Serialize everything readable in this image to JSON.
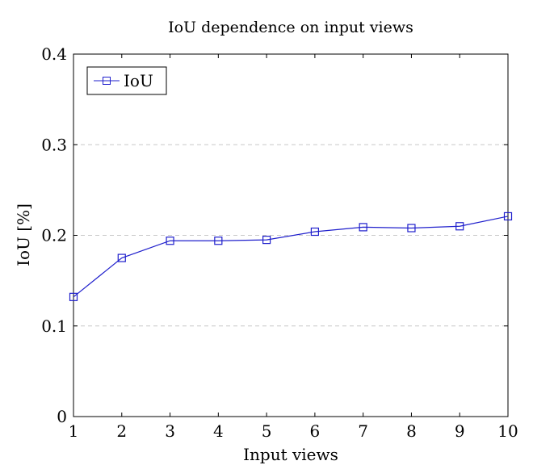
{
  "chart_data": {
    "type": "line",
    "title": "IoU dependence on input views",
    "xlabel": "Input views",
    "ylabel": "IoU [%]",
    "xlim": [
      1,
      10
    ],
    "ylim": [
      0,
      0.4
    ],
    "x_ticks": [
      "1",
      "2",
      "3",
      "4",
      "5",
      "6",
      "7",
      "8",
      "9",
      "10"
    ],
    "y_ticks": [
      "0",
      "0.1",
      "0.2",
      "0.3",
      "0.4"
    ],
    "grid": "horizontal dashed",
    "legend_position": "top-left",
    "series": [
      {
        "name": "IoU",
        "color": "#1f1fcc",
        "marker": "square",
        "x": [
          1,
          2,
          3,
          4,
          5,
          6,
          7,
          8,
          9,
          10
        ],
        "y": [
          0.132,
          0.175,
          0.194,
          0.194,
          0.195,
          0.204,
          0.209,
          0.208,
          0.21,
          0.221
        ]
      }
    ]
  }
}
